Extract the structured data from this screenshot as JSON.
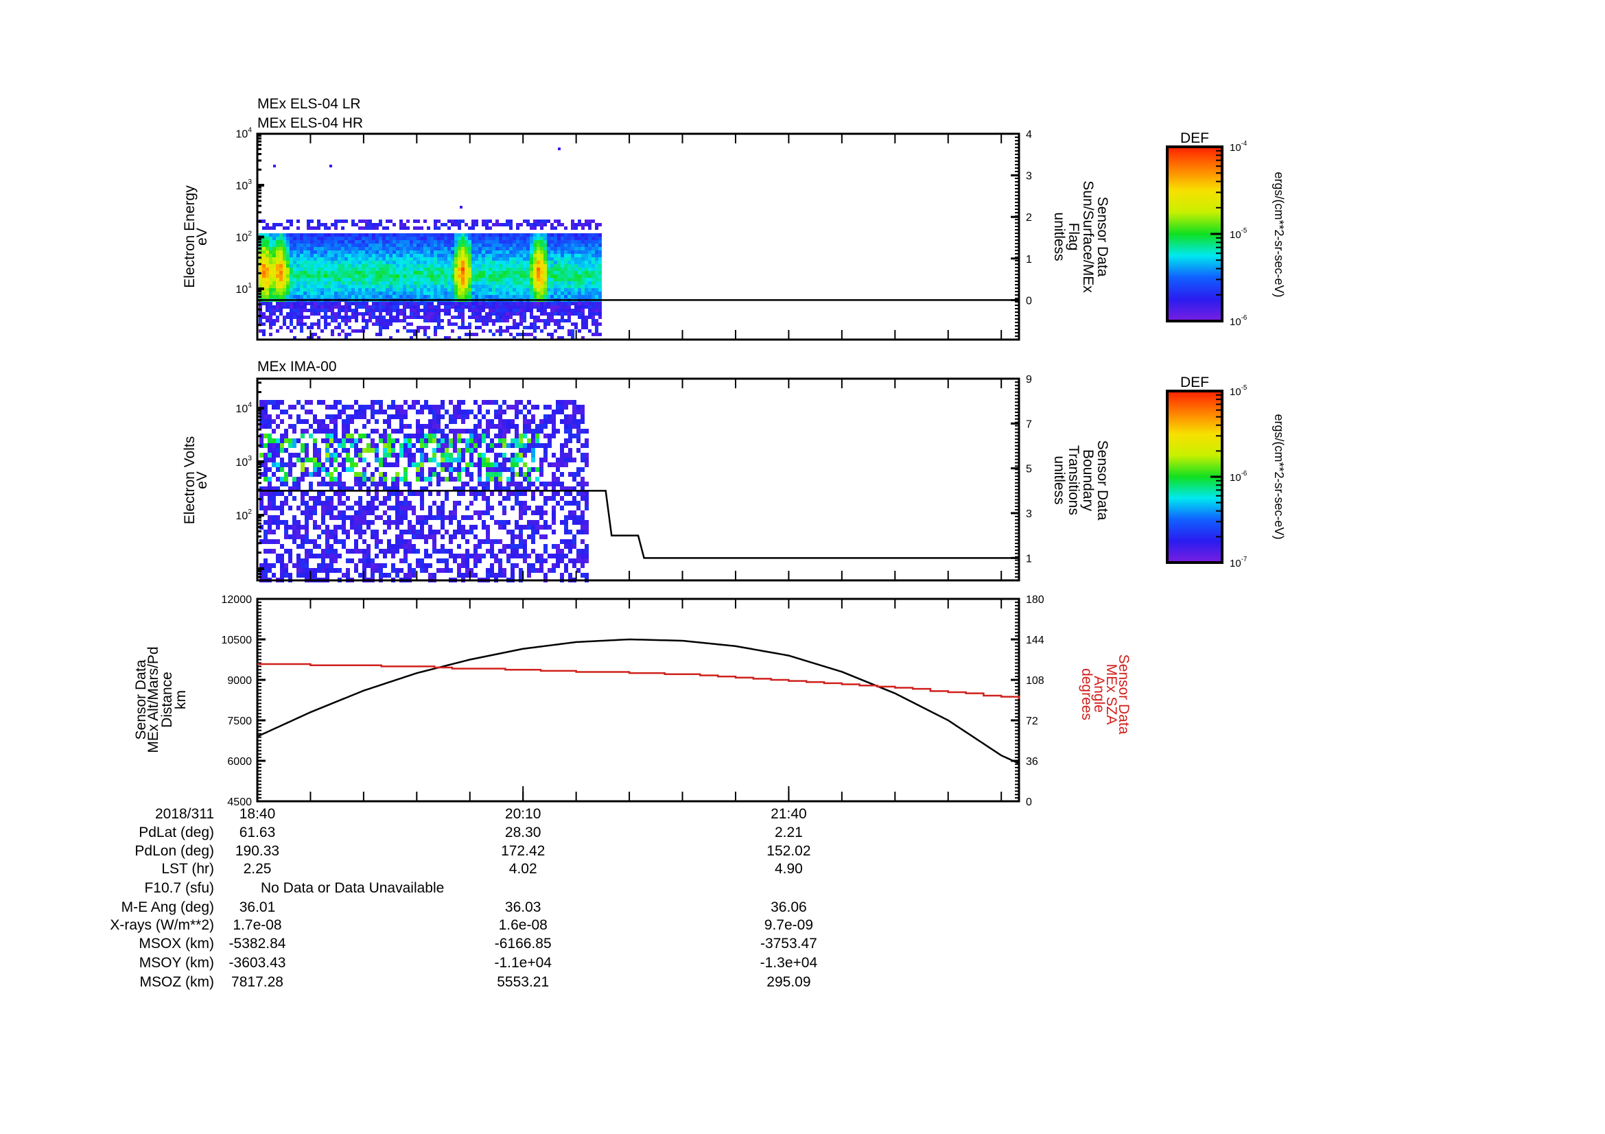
{
  "colors": {
    "alt_line": "#000000",
    "sza_line": "#d0201c",
    "colormap": [
      "#7a1fe0",
      "#2a1cf0",
      "#1060ff",
      "#00e8f0",
      "#10e020",
      "#c8f000",
      "#f8e000",
      "#ff8000",
      "#ff2000"
    ]
  },
  "panels": {
    "els": {
      "titles": [
        "MEx ELS-04 LR",
        "MEx ELS-04 HR"
      ],
      "ylabel": [
        "Electron Energy",
        "eV"
      ],
      "right_label": [
        "Sensor Data",
        "Sun/Surface/MEx",
        "Flag",
        "unitless"
      ],
      "colorbar": {
        "title": "DEF",
        "tick_exponents": [
          -4,
          -5,
          -6
        ],
        "units": "ergs/(cm**2-sr-sec-eV)"
      }
    },
    "ima": {
      "titles": [
        "MEx IMA-00"
      ],
      "ylabel": [
        "Electron Volts",
        "eV"
      ],
      "right_label": [
        "Sensor Data",
        "Boundary",
        "Transitions",
        "unitless"
      ],
      "colorbar": {
        "title": "DEF",
        "tick_exponents": [
          -5,
          -6,
          -7
        ],
        "units": "ergs/(cm**2-sr-sec-eV)"
      }
    },
    "orbit": {
      "ylabel": [
        "Sensor Data",
        "MEx Alt/Mars/Pd",
        "Distance",
        "km"
      ],
      "right_label": [
        "Sensor Data",
        "MEx SZA",
        "Angle",
        "degrees"
      ]
    }
  },
  "chart_data": [
    {
      "type": "heatmap",
      "title": "MEx ELS-04 LR / MEx ELS-04 HR",
      "ylabel": "Electron Energy (eV)",
      "yscale": "log",
      "ytick_exponents": [
        1,
        2,
        3,
        4
      ],
      "ylim": [
        2,
        10000
      ],
      "data_time_range_min": [
        0,
        116
      ],
      "peak_energy_eV": 20,
      "hotspot_times_min": [
        2,
        7,
        69,
        95
      ],
      "right_axis": {
        "label": "Sun/Surface/MEx Flag",
        "ticks": [
          0,
          1,
          2,
          3,
          4
        ],
        "ylim": [
          -0.95,
          4
        ]
      },
      "flag_series": {
        "t_min": [
          0,
          258
        ],
        "value": [
          0,
          0
        ]
      },
      "color_range_log10": [
        -6,
        -4
      ]
    },
    {
      "type": "heatmap",
      "title": "MEx IMA-00",
      "ylabel": "Electron Volts (eV)",
      "yscale": "log",
      "ytick_exponents": [
        2,
        3,
        4
      ],
      "ylim": [
        6,
        30000
      ],
      "data_time_range_min": [
        0,
        112
      ],
      "right_axis": {
        "label": "Boundary Transitions",
        "ticks": [
          1,
          3,
          5,
          7,
          9
        ],
        "ylim": [
          0,
          9
        ]
      },
      "boundary_series": {
        "t_min": [
          0,
          118,
          120,
          129,
          131,
          258
        ],
        "value": [
          4,
          4,
          2,
          2,
          1,
          1
        ]
      },
      "color_range_log10": [
        -7,
        -5
      ]
    },
    {
      "type": "line",
      "xlabel": "2018/311",
      "x_start": "18:40",
      "x_span_min": 258,
      "xticks": [
        {
          "t_min": 0,
          "label": "18:40"
        },
        {
          "t_min": 90,
          "label": "20:10"
        },
        {
          "t_min": 180,
          "label": "21:40"
        }
      ],
      "left_axis": {
        "label": "MEx Alt/Mars/Pd Distance (km)",
        "ylim": [
          4500,
          12000
        ],
        "ticks": [
          4500,
          6000,
          7500,
          9000,
          10500,
          12000
        ]
      },
      "right_axis": {
        "label": "MEx SZA Angle (degrees)",
        "ylim": [
          0,
          180
        ],
        "ticks": [
          0,
          36,
          72,
          108,
          144,
          180
        ]
      },
      "series": [
        {
          "name": "MEx Alt/Mars/Pd",
          "axis": "left",
          "t_min": [
            0,
            18,
            36,
            54,
            72,
            90,
            108,
            126,
            144,
            162,
            180,
            198,
            216,
            234,
            252,
            258
          ],
          "values": [
            6900,
            7800,
            8600,
            9250,
            9750,
            10150,
            10400,
            10500,
            10450,
            10250,
            9900,
            9300,
            8500,
            7500,
            6200,
            5900
          ]
        },
        {
          "name": "MEx SZA",
          "axis": "right",
          "t_min": [
            0,
            25,
            50,
            70,
            90,
            110,
            130,
            150,
            180,
            207,
            230,
            258
          ],
          "values": [
            122,
            121,
            120,
            118,
            117,
            115,
            114,
            112,
            107,
            103,
            98,
            91
          ]
        }
      ]
    }
  ],
  "ephemeris": {
    "rows": [
      {
        "label": "2018/311",
        "values": [
          "18:40",
          "20:10",
          "21:40"
        ]
      },
      {
        "label": "PdLat (deg)",
        "values": [
          "61.63",
          "28.30",
          "2.21"
        ]
      },
      {
        "label": "PdLon (deg)",
        "values": [
          "190.33",
          "172.42",
          "152.02"
        ]
      },
      {
        "label": "LST (hr)",
        "values": [
          "2.25",
          "4.02",
          "4.90"
        ]
      },
      {
        "label": "F10.7 (sfu)",
        "note": "No Data or Data Unavailable"
      },
      {
        "label": "M-E Ang (deg)",
        "values": [
          "36.01",
          "36.03",
          "36.06"
        ]
      },
      {
        "label": "X-rays (W/m**2)",
        "values": [
          "1.7e-08",
          "1.6e-08",
          "9.7e-09"
        ]
      },
      {
        "label": "MSOX (km)",
        "values": [
          "-5382.84",
          "-6166.85",
          "-3753.47"
        ]
      },
      {
        "label": "MSOY (km)",
        "values": [
          "-3603.43",
          "-1.1e+04",
          "-1.3e+04"
        ]
      },
      {
        "label": "MSOZ (km)",
        "values": [
          "7817.28",
          "5553.21",
          "295.09"
        ]
      }
    ]
  }
}
